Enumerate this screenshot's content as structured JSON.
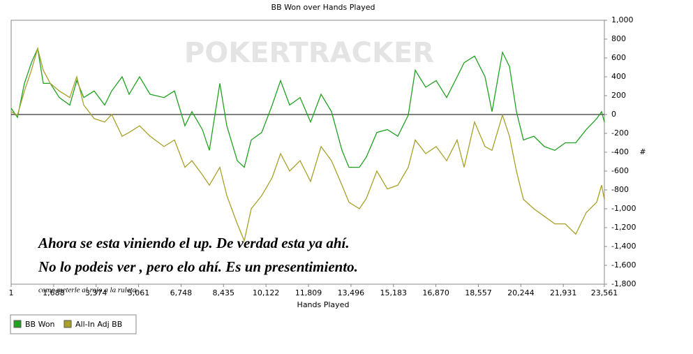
{
  "chart_data": {
    "type": "line",
    "title": "BB Won over Hands Played",
    "watermark": "POKERTRACKER",
    "xlabel": "Hands Played",
    "ylabel": "#",
    "annotations": [
      "Ahora se esta viniendo el up. De verdad esta ya ahí.",
      "No lo podeis ver , pero elo ahí. Es un presentimiento.",
      "como meterle al rojo a la ruleta."
    ],
    "x": [
      1,
      250,
      528,
      805,
      1054,
      1276,
      1553,
      1913,
      2329,
      2606,
      2884,
      3299,
      3715,
      3992,
      4408,
      4685,
      5101,
      5517,
      6071,
      6487,
      6903,
      7180,
      7596,
      7873,
      8289,
      8566,
      8982,
      9259,
      9536,
      9952,
      10367,
      10700,
      11060,
      11476,
      11892,
      12308,
      12723,
      13139,
      13416,
      13832,
      14109,
      14525,
      14941,
      15357,
      15772,
      16049,
      16465,
      16881,
      17297,
      17712,
      17990,
      18405,
      18821,
      19098,
      19514,
      19791,
      20068,
      20345,
      20761,
      21177,
      21593,
      22008,
      22424,
      22840,
      23256,
      23450,
      23561
    ],
    "series": [
      {
        "name": "BB Won",
        "color": "#21a121",
        "values": [
          67,
          -30,
          330,
          550,
          700,
          330,
          330,
          180,
          100,
          360,
          180,
          250,
          100,
          250,
          400,
          215,
          400,
          215,
          180,
          250,
          -120,
          30,
          -160,
          -380,
          330,
          -120,
          -490,
          -560,
          -270,
          -190,
          100,
          360,
          100,
          180,
          -80,
          215,
          30,
          -380,
          -560,
          -560,
          -450,
          -190,
          -160,
          -230,
          -7,
          470,
          290,
          360,
          180,
          400,
          550,
          620,
          400,
          30,
          660,
          510,
          30,
          -270,
          -230,
          -340,
          -380,
          -300,
          -300,
          -160,
          -44,
          30,
          -80
        ]
      },
      {
        "name": "All-In Adj BB",
        "color": "#a8a028",
        "values": [
          30,
          -7,
          250,
          470,
          700,
          470,
          330,
          250,
          180,
          400,
          100,
          -44,
          -80,
          0,
          -230,
          -190,
          -120,
          -230,
          -340,
          -270,
          -560,
          -490,
          -640,
          -750,
          -560,
          -860,
          -1160,
          -1340,
          -1000,
          -860,
          -670,
          -415,
          -600,
          -490,
          -710,
          -340,
          -490,
          -750,
          -930,
          -1000,
          -890,
          -600,
          -790,
          -750,
          -560,
          -270,
          -415,
          -340,
          -490,
          -270,
          -560,
          -80,
          -340,
          -380,
          -7,
          -230,
          -600,
          -900,
          -1000,
          -1080,
          -1160,
          -1160,
          -1270,
          -1040,
          -930,
          -750,
          -900
        ]
      }
    ],
    "xlim": [
      1,
      23561
    ],
    "xticks": [
      1,
      {
        "value": 1688,
        "label": "1,688"
      },
      {
        "value": 3374,
        "label": "3,374"
      },
      {
        "value": 5061,
        "label": "5,061"
      },
      {
        "value": 6748,
        "label": "6,748"
      },
      {
        "value": 8435,
        "label": "8,435"
      },
      {
        "value": 10122,
        "label": "10,122"
      },
      {
        "value": 11809,
        "label": "11,809"
      },
      {
        "value": 13496,
        "label": "13,496"
      },
      {
        "value": 15183,
        "label": "15,183"
      },
      {
        "value": 16870,
        "label": "16,870"
      },
      {
        "value": 18557,
        "label": "18,557"
      },
      {
        "value": 20244,
        "label": "20,244"
      },
      {
        "value": 21931,
        "label": "21,931"
      },
      {
        "value": 23561,
        "label": "23,561"
      }
    ],
    "ylim": [
      -1800,
      1000
    ],
    "yticks": [
      {
        "value": 1000,
        "label": "1,000"
      },
      800,
      600,
      400,
      200,
      0,
      -200,
      -400,
      -600,
      -800,
      {
        "value": -1000,
        "label": "-1,000"
      },
      {
        "value": -1200,
        "label": "-1,200"
      },
      {
        "value": -1400,
        "label": "-1,400"
      },
      {
        "value": -1600,
        "label": "-1,600"
      },
      {
        "value": -1800,
        "label": "-1,800"
      }
    ],
    "grid": false,
    "zero_line": true,
    "legend": "bottom-left"
  }
}
